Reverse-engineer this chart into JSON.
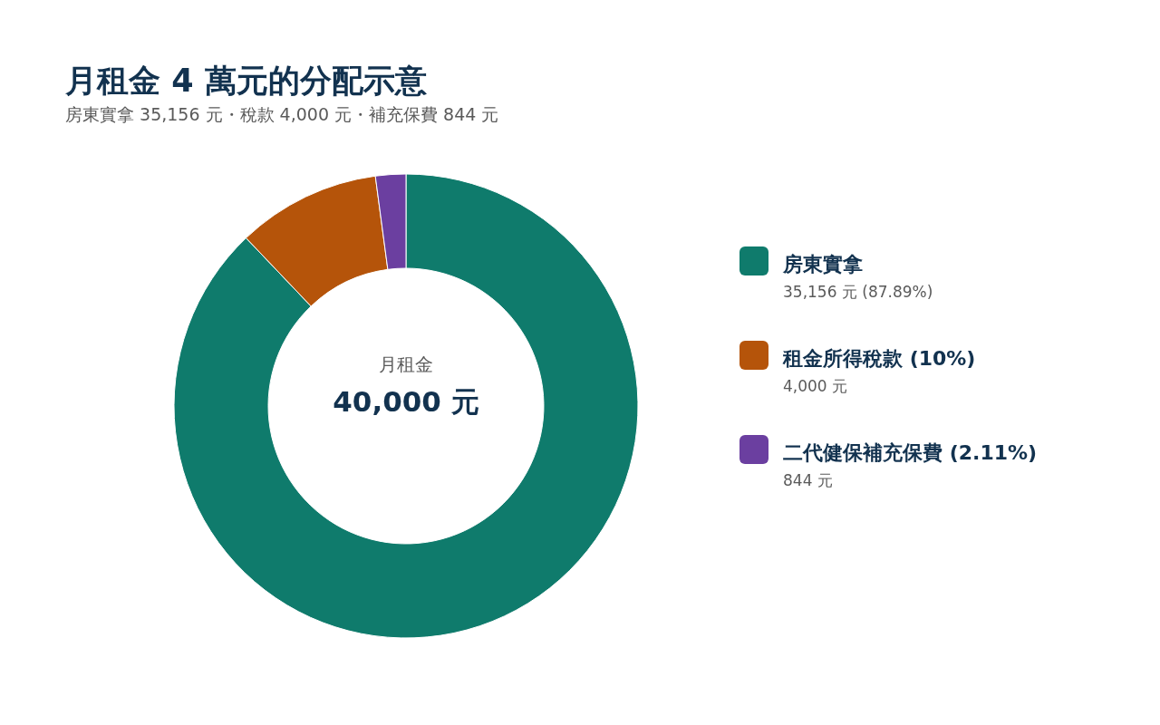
{
  "chart_data": {
    "type": "donut",
    "title": "月租金 4 萬元的分配示意",
    "subtitle": "房東實拿 35,156 元・稅款 4,000 元・補充保費 844 元",
    "categories": [
      "房東實拿",
      "租金所得稅款 (10%)",
      "二代健保補充保費 (2.11%)"
    ],
    "values": [
      35156,
      4000,
      844
    ],
    "colors": [
      "#0f7b6c",
      "#b5540a",
      "#6b3fa0"
    ],
    "value_labels": [
      "35,156 元 (87.89%)",
      "4,000 元",
      "844 元"
    ],
    "annotations": [
      "月租金",
      "40,000 元"
    ],
    "legend": "right"
  }
}
